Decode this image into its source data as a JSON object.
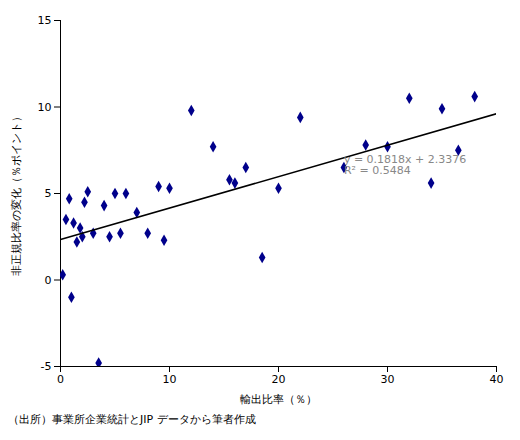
{
  "chart_data": {
    "type": "scatter",
    "xlabel": "輸出比率（％）",
    "ylabel": "非正規比率の変化（％ポイント）",
    "caption": "（出所）事業所企業統計とJIP データから筆者作成",
    "xlim": [
      0,
      40
    ],
    "ylim": [
      -5,
      15
    ],
    "xticks": [
      0,
      10,
      20,
      30,
      40
    ],
    "yticks": [
      -5,
      0,
      5,
      10,
      15
    ],
    "grid": false,
    "series": [
      {
        "type": "scatter",
        "color": "#00008B",
        "marker": "diamond",
        "x": [
          0.2,
          0.5,
          0.8,
          1.0,
          1.2,
          1.5,
          1.8,
          2.0,
          2.2,
          2.5,
          3.0,
          3.5,
          4.0,
          4.5,
          5.0,
          5.5,
          6.0,
          7.0,
          8.0,
          9.0,
          9.5,
          10.0,
          12.0,
          14.0,
          15.5,
          16.0,
          17.0,
          18.5,
          20.0,
          22.0,
          26.0,
          28.0,
          30.0,
          32.0,
          34.0,
          35.0,
          36.5,
          38.0
        ],
        "values": [
          0.3,
          3.5,
          4.7,
          -1.0,
          3.3,
          2.2,
          3.0,
          2.5,
          4.5,
          5.1,
          2.7,
          -4.8,
          4.3,
          2.5,
          5.0,
          2.7,
          5.0,
          3.9,
          2.7,
          5.4,
          2.3,
          5.3,
          9.8,
          7.7,
          5.8,
          5.6,
          6.5,
          1.3,
          5.3,
          9.4,
          6.5,
          7.8,
          7.7,
          10.5,
          5.6,
          9.9,
          7.5,
          10.6
        ]
      },
      {
        "type": "line",
        "color": "#000000",
        "line_style": "solid",
        "x": [
          0,
          40
        ],
        "values": [
          2.3376,
          9.6096
        ]
      }
    ],
    "annotations": [
      {
        "text": "y = 0.1818x + 2.3376\nR² = 0.5484",
        "x": 26,
        "y": 7.2
      }
    ]
  }
}
